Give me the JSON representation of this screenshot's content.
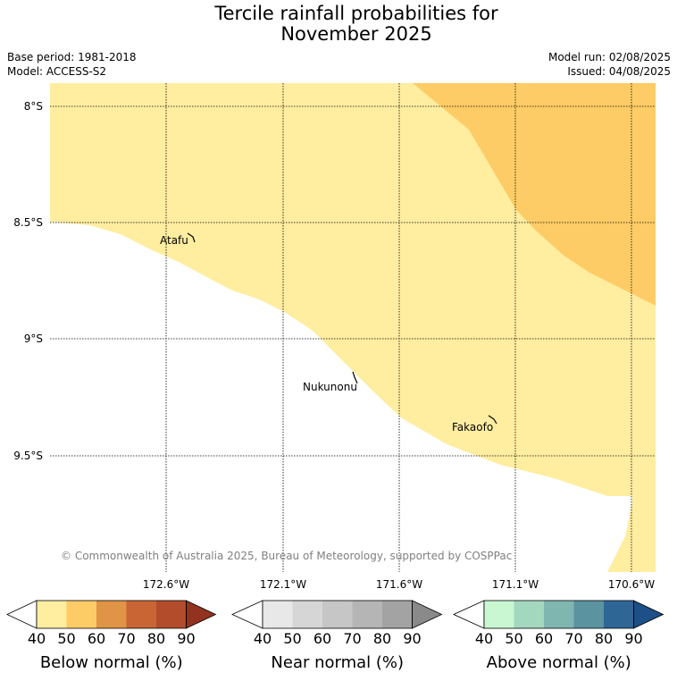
{
  "title_line1": "Tercile rainfall probabilities for",
  "title_line2": "November 2025",
  "meta": {
    "base_period": "Base period: 1981-2018",
    "model": "Model: ACCESS-S2",
    "model_run": "Model run: 02/08/2025",
    "issued": "Issued: 04/08/2025"
  },
  "lat_labels": [
    "8°S",
    "8.5°S",
    "9°S",
    "9.5°S"
  ],
  "lon_labels": [
    "172.6°W",
    "172.1°W",
    "171.6°W",
    "171.1°W",
    "170.6°W"
  ],
  "places": [
    "Atafu",
    "Nukunonu",
    "Fakaofo"
  ],
  "copyright": "© Commonwealth of Australia 2025, Bureau of Meteorology, supported by COSPPac",
  "map_categories": [
    {
      "category": "Below normal",
      "range": "40-50",
      "color": "#ffeda0"
    },
    {
      "category": "Below normal",
      "range": "50-60",
      "color": "#fecc66"
    }
  ],
  "colorbars": [
    {
      "label": "Below normal (%)",
      "ticks": [
        "40",
        "50",
        "60",
        "70",
        "80",
        "90"
      ],
      "colors": [
        "#ffffff",
        "#ffeda0",
        "#fecc66",
        "#e09445",
        "#c96535",
        "#b24c2b",
        "#93321e"
      ]
    },
    {
      "label": "Near normal (%)",
      "ticks": [
        "40",
        "50",
        "60",
        "70",
        "80",
        "90"
      ],
      "colors": [
        "#ffffff",
        "#e8e8e8",
        "#d6d6d6",
        "#c6c6c6",
        "#b5b5b5",
        "#a3a3a3",
        "#8a8a8a"
      ]
    },
    {
      "label": "Above normal (%)",
      "ticks": [
        "40",
        "50",
        "60",
        "70",
        "80",
        "90"
      ],
      "colors": [
        "#ffffff",
        "#c9f7d2",
        "#a3d8bf",
        "#80b6b0",
        "#5b93a1",
        "#2e6696",
        "#1d4f88"
      ]
    }
  ]
}
